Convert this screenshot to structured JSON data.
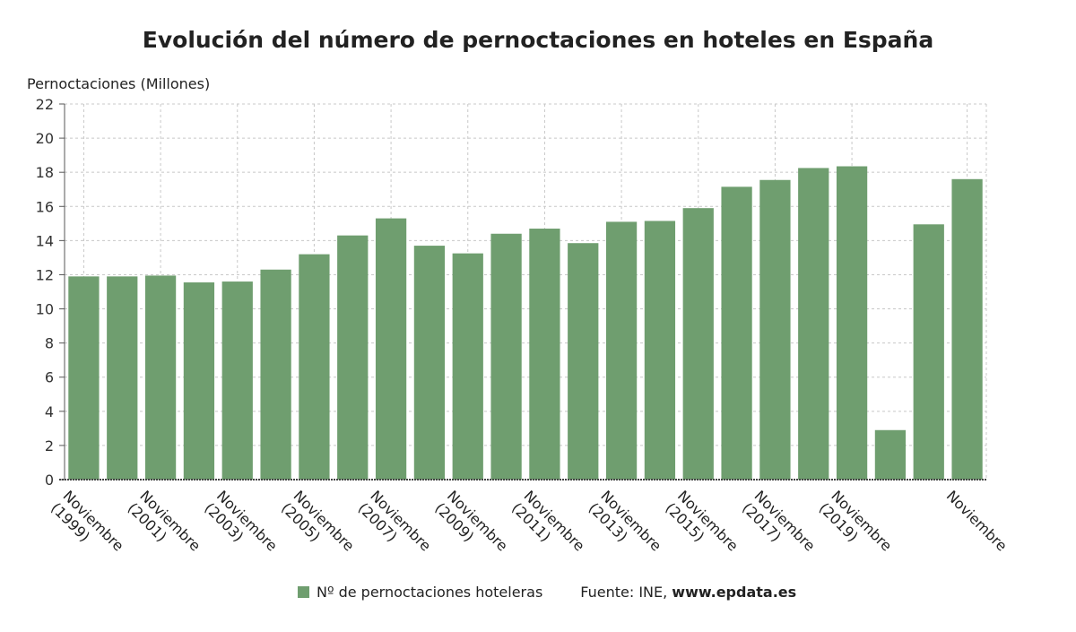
{
  "chart_data": {
    "type": "bar",
    "title": "Evolución del número de pernoctaciones en hoteles en España",
    "ylabel": "Pernoctaciones (Millones)",
    "xlabel": "",
    "ylim": [
      0,
      22
    ],
    "yticks": [
      0,
      2,
      4,
      6,
      8,
      10,
      12,
      14,
      16,
      18,
      20,
      22
    ],
    "grid": true,
    "legend_position": "bottom",
    "categories": [
      "Noviembre (1999)",
      "",
      "Noviembre (2001)",
      "",
      "Noviembre (2003)",
      "",
      "Noviembre (2005)",
      "",
      "Noviembre (2007)",
      "",
      "Noviembre (2009)",
      "",
      "Noviembre (2011)",
      "",
      "Noviembre (2013)",
      "",
      "Noviembre (2015)",
      "",
      "Noviembre (2017)",
      "",
      "Noviembre (2019)",
      "",
      "",
      "Noviembre"
    ],
    "tick_labels": [
      {
        "index": 0,
        "lines": [
          "Noviembre",
          "(1999)"
        ]
      },
      {
        "index": 2,
        "lines": [
          "Noviembre",
          "(2001)"
        ]
      },
      {
        "index": 4,
        "lines": [
          "Noviembre",
          "(2003)"
        ]
      },
      {
        "index": 6,
        "lines": [
          "Noviembre",
          "(2005)"
        ]
      },
      {
        "index": 8,
        "lines": [
          "Noviembre",
          "(2007)"
        ]
      },
      {
        "index": 10,
        "lines": [
          "Noviembre",
          "(2009)"
        ]
      },
      {
        "index": 12,
        "lines": [
          "Noviembre",
          "(2011)"
        ]
      },
      {
        "index": 14,
        "lines": [
          "Noviembre",
          "(2013)"
        ]
      },
      {
        "index": 16,
        "lines": [
          "Noviembre",
          "(2015)"
        ]
      },
      {
        "index": 18,
        "lines": [
          "Noviembre",
          "(2017)"
        ]
      },
      {
        "index": 20,
        "lines": [
          "Noviembre",
          "(2019)"
        ]
      },
      {
        "index": 23,
        "lines": [
          "Noviembre"
        ]
      }
    ],
    "series": [
      {
        "name": "Nº de pernoctaciones hoteleras",
        "color": "#6f9e6f",
        "values": [
          11.9,
          11.9,
          11.95,
          11.55,
          11.6,
          12.3,
          13.2,
          14.3,
          15.3,
          13.7,
          13.25,
          14.4,
          14.7,
          13.85,
          15.1,
          15.15,
          15.9,
          17.15,
          17.55,
          18.25,
          18.35,
          2.9,
          14.95,
          17.6
        ]
      }
    ]
  },
  "source": {
    "prefix": "Fuente: INE, ",
    "site": "www.epdata.es"
  }
}
